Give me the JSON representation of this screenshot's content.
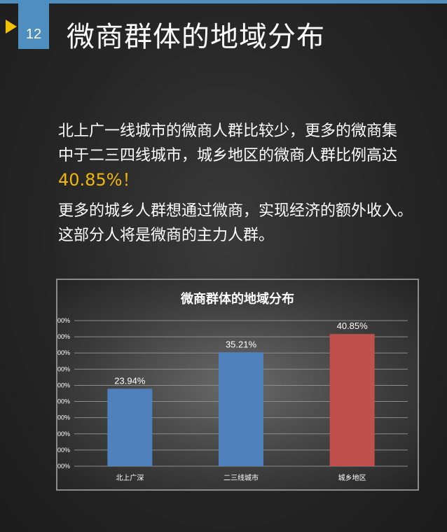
{
  "page": {
    "number": "12",
    "title": "微商群体的地域分布",
    "accent_color": "#4f8fbf",
    "marker_color": "#f2c200"
  },
  "intro": {
    "line1": "北上广一线城市的微商人群比较少，更多的微商集",
    "line2": "中于二三四线城市，城乡地区的微商人群比例高达",
    "highlight": "40.85%！",
    "line3": "更多的城乡人群想通过微商，实现经济的额外收入。",
    "line4": "这部分人将是微商的主力人群。",
    "highlight_color": "#f2b705"
  },
  "chart_data": {
    "type": "bar",
    "title": "微商群体的地域分布",
    "categories": [
      "北上广深",
      "二三线城市",
      "城乡地区"
    ],
    "values": [
      23.94,
      35.21,
      40.85
    ],
    "data_labels": [
      "23.94%",
      "35.21%",
      "40.85%"
    ],
    "colors": [
      "#4f81bd",
      "#4f81bd",
      "#c0504d"
    ],
    "ylim": [
      0,
      45
    ],
    "yticks": [
      0,
      5,
      10,
      15,
      20,
      25,
      30,
      35,
      40,
      45
    ],
    "ytick_labels": [
      "0.00%",
      "5.00%",
      "10.00%",
      "15.00%",
      "20.00%",
      "25.00%",
      "30.00%",
      "35.00%",
      "40.00%",
      "45.00%"
    ],
    "grid": true,
    "legend": "none"
  }
}
